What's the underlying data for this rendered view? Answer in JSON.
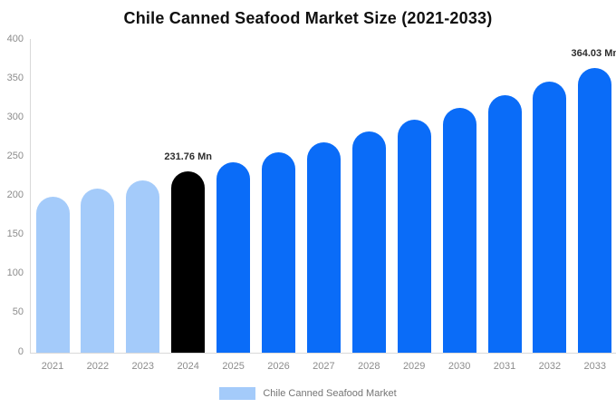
{
  "title": "Chile Canned Seafood Market Size (2021-2033)",
  "legend": {
    "label": "Chile Canned Seafood Market",
    "swatch_color": "#a4cbfa"
  },
  "colors": {
    "historical_bar": "#a4cbfa",
    "base_year_bar": "#000000",
    "forecast_bar": "#0a6cf8",
    "axis_line": "#d9d9d9",
    "tick_text": "#8c8c8c",
    "annotation_text": "#2d2d2d"
  },
  "chart_data": {
    "type": "bar",
    "title": "Chile Canned Seafood Market Size (2021-2033)",
    "xlabel": "",
    "ylabel": "",
    "unit": "Mn",
    "categories": [
      "2021",
      "2022",
      "2023",
      "2024",
      "2025",
      "2026",
      "2027",
      "2028",
      "2029",
      "2030",
      "2031",
      "2032",
      "2033"
    ],
    "values": [
      199.4,
      209.7,
      220.4,
      231.76,
      243.7,
      256.2,
      269.4,
      283.3,
      297.9,
      313.3,
      329.4,
      346.3,
      364.03
    ],
    "ylim": [
      0,
      400
    ],
    "yticks": [
      0,
      50,
      100,
      150,
      200,
      250,
      300,
      350,
      400
    ],
    "grid": false,
    "legend_position": "bottom",
    "segments": {
      "historical_indices": [
        0,
        1,
        2
      ],
      "base_year_index": 3,
      "forecast_indices": [
        4,
        5,
        6,
        7,
        8,
        9,
        10,
        11,
        12
      ]
    },
    "annotations": [
      {
        "index": 3,
        "text": "231.76 Mn"
      },
      {
        "index": 12,
        "text": "364.03 Mn"
      }
    ],
    "legend_entries": [
      "Chile Canned Seafood Market"
    ]
  }
}
